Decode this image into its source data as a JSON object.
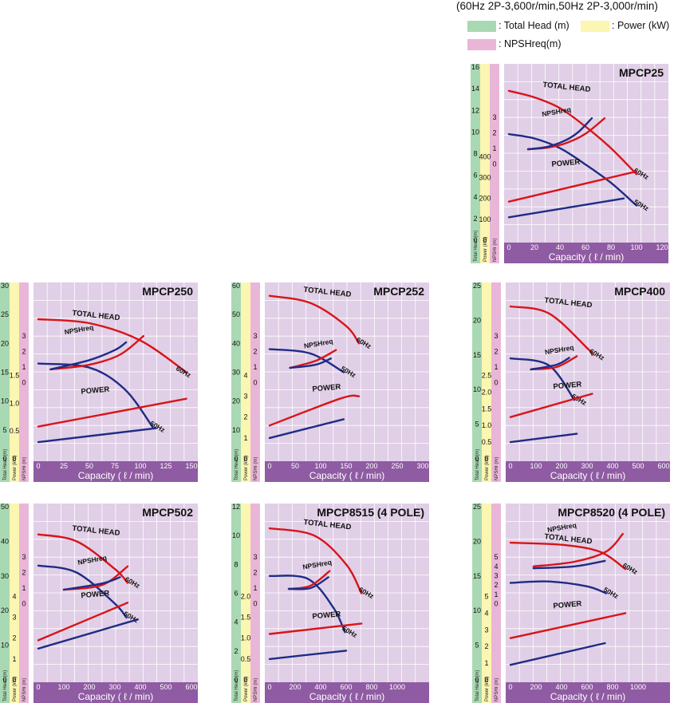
{
  "legend": {
    "spec_text": "(60Hz 2P-3,600r/min,50Hz 2P-3,000r/min)",
    "items": [
      {
        "label": ": Total Head (m)",
        "color": "#a9d9b3"
      },
      {
        "label": ": Power (kW)",
        "color": "#fbf6b1"
      },
      {
        "label": ": NPSHreq(m)",
        "color": "#eab6d7"
      }
    ]
  },
  "colors": {
    "plot_bg": "#e0cfe6",
    "grid": "#ffffff",
    "axis_bar": "#8f5ba2",
    "head_band": "#a9d9b3",
    "power_band": "#fbf6b1",
    "npsh_band": "#eab6d7",
    "red": "#d8141a",
    "blue": "#1e2c86"
  },
  "axis_band_labels": {
    "head": "Total Head (m)",
    "power": "Power (kW)",
    "npsh": "NPSHr (m)"
  },
  "chart_data": [
    {
      "type": "line",
      "title": "MPCP25",
      "xlabel": "Capacity ( ℓ / min)",
      "xlim": [
        0,
        120
      ],
      "x_ticks": [
        "0",
        "20",
        "40",
        "60",
        "80",
        "100",
        "120"
      ],
      "grid": true,
      "head_axis": {
        "ticks": [
          "0",
          "2",
          "4",
          "6",
          "8",
          "10",
          "12",
          "14",
          "16"
        ],
        "range": [
          0,
          16
        ]
      },
      "npsh_axis": {
        "ticks": [
          "0",
          "1",
          "2",
          "3"
        ],
        "range": [
          0,
          3
        ]
      },
      "power_axis": {
        "ticks": [
          "0",
          "100",
          "200",
          "300",
          "400"
        ],
        "range": [
          0,
          400
        ]
      },
      "series": [
        {
          "label": "TOTAL HEAD",
          "freq": "60Hz",
          "curve": "head",
          "x": [
            0,
            20,
            40,
            60,
            80,
            100
          ],
          "y": [
            13.8,
            13.2,
            12.2,
            10.5,
            8.5,
            6.1
          ]
        },
        {
          "freq": "50Hz",
          "curve": "head",
          "x": [
            0,
            20,
            40,
            60,
            80,
            100
          ],
          "y": [
            9.8,
            9.4,
            8.5,
            7.0,
            5.3,
            3.2
          ]
        },
        {
          "label": "NPSHreq",
          "freq": "60Hz",
          "curve": "npsh",
          "x": [
            15,
            30,
            45,
            60,
            75
          ],
          "y": [
            0.95,
            1.05,
            1.35,
            1.95,
            2.95
          ]
        },
        {
          "freq": "50Hz",
          "curve": "npsh",
          "x": [
            15,
            30,
            45,
            55,
            65
          ],
          "y": [
            0.95,
            1.1,
            1.55,
            2.1,
            2.95
          ]
        },
        {
          "label": "POWER",
          "freq": "60Hz",
          "curve": "power",
          "x": [
            0,
            100
          ],
          "y": [
            185,
            330
          ]
        },
        {
          "freq": "50Hz",
          "curve": "power",
          "x": [
            0,
            90
          ],
          "y": [
            110,
            200
          ]
        }
      ]
    },
    {
      "type": "line",
      "title": "MPCP250",
      "xlabel": "Capacity ( ℓ / min)",
      "xlim": [
        0,
        150
      ],
      "x_ticks": [
        "0",
        "25",
        "50",
        "75",
        "100",
        "125",
        "150"
      ],
      "grid": true,
      "head_axis": {
        "ticks": [
          "0",
          "5",
          "10",
          "15",
          "20",
          "25",
          "30"
        ],
        "range": [
          0,
          30
        ]
      },
      "npsh_axis": {
        "ticks": [
          "0",
          "1",
          "2",
          "3"
        ],
        "range": [
          0,
          3
        ]
      },
      "power_axis": {
        "ticks": [
          "0",
          "0.5",
          "1.0",
          "1.5"
        ],
        "range": [
          0,
          1.5
        ]
      },
      "series": [
        {
          "label": "TOTAL HEAD",
          "freq": "60Hz",
          "curve": "head",
          "x": [
            0,
            50,
            100,
            145
          ],
          "y": [
            24.2,
            23.5,
            20.5,
            15.0
          ]
        },
        {
          "freq": "50Hz",
          "curve": "head",
          "x": [
            0,
            50,
            85,
            112
          ],
          "y": [
            16.5,
            15.8,
            12.0,
            5.5
          ]
        },
        {
          "label": "NPSHreq",
          "freq": "60Hz",
          "curve": "npsh",
          "x": [
            12,
            50,
            80,
            103
          ],
          "y": [
            0.85,
            1.15,
            1.8,
            3.0
          ]
        },
        {
          "freq": "50Hz",
          "curve": "npsh",
          "x": [
            12,
            50,
            75,
            86
          ],
          "y": [
            0.85,
            1.45,
            2.1,
            2.6
          ]
        },
        {
          "label": "POWER",
          "freq": "60Hz",
          "curve": "power",
          "x": [
            0,
            145
          ],
          "y": [
            0.58,
            1.08
          ]
        },
        {
          "freq": "50Hz",
          "curve": "power",
          "x": [
            0,
            115
          ],
          "y": [
            0.3,
            0.55
          ]
        }
      ]
    },
    {
      "type": "line",
      "title": "MPCP252",
      "xlabel": "Capacity ( ℓ / min)",
      "xlim": [
        0,
        300
      ],
      "x_ticks": [
        "0",
        "50",
        "100",
        "150",
        "200",
        "250",
        "300"
      ],
      "grid": true,
      "head_axis": {
        "ticks": [
          "0",
          "10",
          "20",
          "30",
          "40",
          "50",
          "60"
        ],
        "range": [
          0,
          60
        ]
      },
      "npsh_axis": {
        "ticks": [
          "0",
          "1",
          "2",
          "3"
        ],
        "range": [
          0,
          3
        ]
      },
      "power_axis": {
        "ticks": [
          "0",
          "1",
          "2",
          "3",
          "4"
        ],
        "range": [
          0,
          4
        ]
      },
      "series": [
        {
          "label": "TOTAL HEAD",
          "freq": "60Hz",
          "curve": "head",
          "x": [
            0,
            80,
            150,
            175
          ],
          "y": [
            56.5,
            54.0,
            46.0,
            40.0
          ]
        },
        {
          "freq": "50Hz",
          "curve": "head",
          "x": [
            0,
            80,
            145
          ],
          "y": [
            38.0,
            36.5,
            30.0
          ]
        },
        {
          "label": "NPSHreq",
          "freq": "60Hz",
          "curve": "npsh",
          "x": [
            40,
            90,
            130
          ],
          "y": [
            0.95,
            1.4,
            2.1
          ]
        },
        {
          "freq": "50Hz",
          "curve": "npsh",
          "x": [
            40,
            90,
            120
          ],
          "y": [
            0.95,
            1.15,
            1.55
          ]
        },
        {
          "label": "POWER",
          "freq": "60Hz",
          "curve": "power",
          "x": [
            0,
            140,
            175
          ],
          "y": [
            1.6,
            2.9,
            3.0
          ]
        },
        {
          "freq": "50Hz",
          "curve": "power",
          "x": [
            0,
            145
          ],
          "y": [
            1.0,
            1.9
          ]
        }
      ]
    },
    {
      "type": "line",
      "title": "MPCP400",
      "xlabel": "Capacity ( ℓ / min)",
      "xlim": [
        0,
        600
      ],
      "x_ticks": [
        "0",
        "100",
        "200",
        "300",
        "400",
        "500",
        "600"
      ],
      "grid": true,
      "head_axis": {
        "ticks": [
          "0",
          "5",
          "10",
          "15",
          "20",
          "25"
        ],
        "range": [
          0,
          25
        ]
      },
      "npsh_axis": {
        "ticks": [
          "0",
          "1",
          "2",
          "3"
        ],
        "range": [
          0,
          3
        ]
      },
      "power_axis": {
        "ticks": [
          "0",
          "0.5",
          "1.0",
          "1.5",
          "2.0",
          "2.5"
        ],
        "range": [
          0,
          2.5
        ]
      },
      "series": [
        {
          "label": "TOTAL HEAD",
          "freq": "60Hz",
          "curve": "head",
          "x": [
            0,
            150,
            300,
            320
          ],
          "y": [
            22.0,
            21.0,
            16.0,
            15.0
          ]
        },
        {
          "freq": "50Hz",
          "curve": "head",
          "x": [
            0,
            150,
            250
          ],
          "y": [
            14.5,
            13.5,
            8.5
          ]
        },
        {
          "label": "NPSHreq",
          "freq": "60Hz",
          "curve": "npsh",
          "x": [
            80,
            180,
            260
          ],
          "y": [
            0.85,
            1.0,
            1.7
          ]
        },
        {
          "freq": "50Hz",
          "curve": "npsh",
          "x": [
            80,
            180,
            230
          ],
          "y": [
            0.85,
            1.15,
            1.6
          ]
        },
        {
          "label": "POWER",
          "freq": "60Hz",
          "curve": "power",
          "x": [
            0,
            320
          ],
          "y": [
            1.25,
            1.95
          ]
        },
        {
          "freq": "50Hz",
          "curve": "power",
          "x": [
            0,
            260
          ],
          "y": [
            0.5,
            0.75
          ]
        }
      ]
    },
    {
      "type": "line",
      "title": "MPCP502",
      "xlabel": "Capacity ( ℓ / min)",
      "xlim": [
        0,
        600
      ],
      "x_ticks": [
        "0",
        "100",
        "200",
        "300",
        "400",
        "500",
        "600"
      ],
      "grid": true,
      "head_axis": {
        "ticks": [
          "0",
          "10",
          "20",
          "30",
          "40",
          "50"
        ],
        "range": [
          0,
          50
        ]
      },
      "npsh_axis": {
        "ticks": [
          "0",
          "1",
          "2",
          "3"
        ],
        "range": [
          0,
          3
        ]
      },
      "power_axis": {
        "ticks": [
          "0",
          "1",
          "2",
          "3",
          "4"
        ],
        "range": [
          0,
          4
        ]
      },
      "series": [
        {
          "label": "TOTAL HEAD",
          "freq": "60Hz",
          "curve": "head",
          "x": [
            0,
            150,
            300,
            350
          ],
          "y": [
            42.0,
            40.0,
            32.0,
            28.0
          ]
        },
        {
          "freq": "50Hz",
          "curve": "head",
          "x": [
            0,
            150,
            300,
            345
          ],
          "y": [
            33.0,
            31.0,
            22.0,
            18.0
          ]
        },
        {
          "label": "NPSHreq",
          "freq": "60Hz",
          "curve": "npsh",
          "x": [
            100,
            250,
            350
          ],
          "y": [
            0.9,
            1.2,
            2.4
          ]
        },
        {
          "freq": "50Hz",
          "curve": "npsh",
          "x": [
            100,
            250,
            320
          ],
          "y": [
            0.9,
            1.3,
            1.7
          ]
        },
        {
          "label": "POWER",
          "freq": "60Hz",
          "curve": "power",
          "x": [
            0,
            350
          ],
          "y": [
            1.9,
            3.7
          ]
        },
        {
          "freq": "50Hz",
          "curve": "power",
          "x": [
            0,
            390
          ],
          "y": [
            1.5,
            2.9
          ]
        }
      ]
    },
    {
      "type": "line",
      "title": "MPCP8515 (4 POLE)",
      "xlabel": "Capacity ( ℓ / min)",
      "xlim": [
        0,
        1200
      ],
      "x_ticks": [
        "0",
        "200",
        "400",
        "600",
        "800",
        "1000"
      ],
      "grid": true,
      "head_axis": {
        "ticks": [
          "0",
          "2",
          "4",
          "6",
          "8",
          "10",
          "12"
        ],
        "range": [
          0,
          12
        ]
      },
      "npsh_axis": {
        "ticks": [
          "0",
          "1",
          "2",
          "3"
        ],
        "range": [
          0,
          3
        ]
      },
      "power_axis": {
        "ticks": [
          "0",
          "0.5",
          "1.0",
          "1.5",
          "2.0"
        ],
        "range": [
          0,
          2.0
        ]
      },
      "series": [
        {
          "label": "TOTAL HEAD",
          "freq": "60Hz",
          "curve": "head",
          "x": [
            0,
            350,
            600,
            720
          ],
          "y": [
            10.5,
            10.0,
            8.0,
            6.0
          ]
        },
        {
          "freq": "50Hz",
          "curve": "head",
          "x": [
            0,
            300,
            500,
            590
          ],
          "y": [
            7.2,
            7.0,
            5.0,
            3.3
          ]
        },
        {
          "label": "NPSHreq",
          "freq": "60Hz",
          "curve": "npsh",
          "x": [
            150,
            320,
            470
          ],
          "y": [
            0.95,
            1.15,
            2.1
          ]
        },
        {
          "freq": "50Hz",
          "curve": "npsh",
          "x": [
            150,
            320,
            460
          ],
          "y": [
            0.95,
            1.0,
            1.7
          ]
        },
        {
          "label": "POWER",
          "freq": "60Hz",
          "curve": "power",
          "x": [
            0,
            720
          ],
          "y": [
            1.1,
            1.35
          ]
        },
        {
          "freq": "50Hz",
          "curve": "power",
          "x": [
            0,
            600
          ],
          "y": [
            0.5,
            0.7
          ]
        }
      ]
    },
    {
      "type": "line",
      "title": "MPCP8520 (4 POLE)",
      "xlabel": "Capacity ( ℓ / min)",
      "xlim": [
        0,
        1200
      ],
      "x_ticks": [
        "0",
        "200",
        "400",
        "600",
        "800",
        "1000"
      ],
      "grid": true,
      "head_axis": {
        "ticks": [
          "0",
          "5",
          "10",
          "15",
          "20",
          "25"
        ],
        "range": [
          0,
          25
        ]
      },
      "npsh_axis": {
        "ticks": [
          "0",
          "1",
          "2",
          "3",
          "4",
          "5"
        ],
        "range": [
          0,
          5
        ]
      },
      "power_axis": {
        "ticks": [
          "0",
          "1",
          "2",
          "3",
          "4",
          "5"
        ],
        "range": [
          0,
          5
        ]
      },
      "series": [
        {
          "label": "TOTAL HEAD",
          "freq": "60Hz",
          "curve": "head",
          "x": [
            0,
            400,
            700,
            900
          ],
          "y": [
            19.8,
            19.5,
            18.5,
            16.0
          ]
        },
        {
          "freq": "50Hz",
          "curve": "head",
          "x": [
            0,
            300,
            600,
            750
          ],
          "y": [
            14.0,
            14.2,
            13.5,
            12.5
          ]
        },
        {
          "label": "NPSHreq",
          "freq": "60Hz",
          "curve": "npsh",
          "x": [
            180,
            500,
            750,
            880
          ],
          "y": [
            4.0,
            4.5,
            5.6,
            7.5
          ]
        },
        {
          "freq": "50Hz",
          "curve": "npsh",
          "x": [
            180,
            500,
            740
          ],
          "y": [
            3.8,
            4.0,
            4.6
          ]
        },
        {
          "label": "POWER",
          "freq": "60Hz",
          "curve": "power",
          "x": [
            0,
            900
          ],
          "y": [
            2.5,
            4.0
          ]
        },
        {
          "freq": "50Hz",
          "curve": "power",
          "x": [
            0,
            740
          ],
          "y": [
            0.9,
            2.2
          ]
        }
      ]
    }
  ]
}
